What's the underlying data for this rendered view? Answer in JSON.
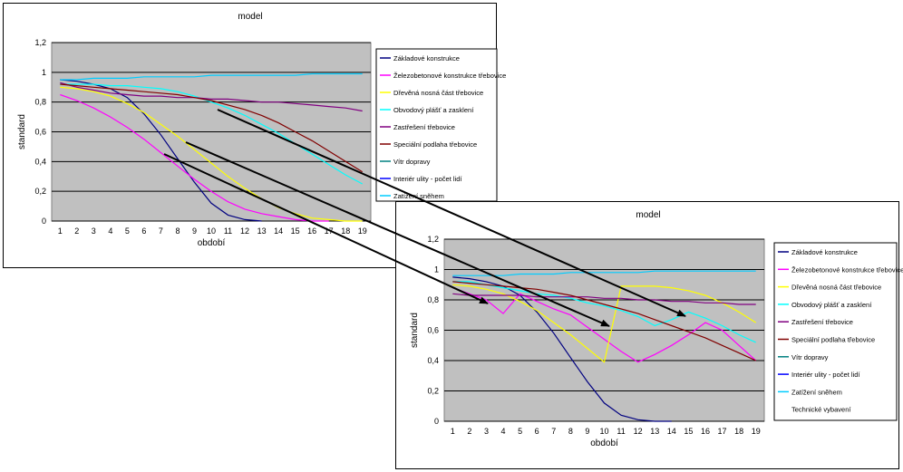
{
  "colors": {
    "plot_bg": "#c0c0c0",
    "grid": "#000000",
    "arrow": "#000000"
  },
  "chart_data": [
    {
      "type": "line",
      "title": "model",
      "xlabel": "období",
      "ylabel": "standard",
      "ylim": [
        0,
        1.2
      ],
      "yticks": [
        "0",
        "0,2",
        "0,4",
        "0,6",
        "0,8",
        "1",
        "1,2"
      ],
      "ytick_values": [
        0,
        0.2,
        0.4,
        0.6,
        0.8,
        1.0,
        1.2
      ],
      "x": [
        1,
        2,
        3,
        4,
        5,
        6,
        7,
        8,
        9,
        10,
        11,
        12,
        13,
        14,
        15,
        16,
        17,
        18,
        19
      ],
      "grid": true,
      "legend_position": "right",
      "series": [
        {
          "name": "Základové konstrukce",
          "color": "#000080",
          "values": [
            0.95,
            0.94,
            0.92,
            0.89,
            0.83,
            0.72,
            0.58,
            0.42,
            0.26,
            0.12,
            0.04,
            0.01,
            0.0,
            null,
            null,
            null,
            null,
            null,
            null
          ]
        },
        {
          "name": "Železobetonové konstrukce třebovice",
          "color": "#ff00ff",
          "values": [
            0.85,
            0.81,
            0.76,
            0.7,
            0.63,
            0.55,
            0.46,
            0.37,
            0.28,
            0.2,
            0.13,
            0.08,
            0.05,
            0.03,
            0.01,
            0.0,
            0.0,
            null,
            null
          ]
        },
        {
          "name": "Dřevěná nosná část třebovice",
          "color": "#ffff00",
          "values": [
            0.9,
            0.89,
            0.87,
            0.84,
            0.79,
            0.73,
            0.65,
            0.57,
            0.48,
            0.39,
            0.3,
            0.22,
            0.15,
            0.09,
            0.05,
            0.02,
            0.01,
            0.0,
            0.0
          ]
        },
        {
          "name": "Obvodový plášť a zasklení",
          "color": "#00ffff",
          "values": [
            0.92,
            0.92,
            0.92,
            0.91,
            0.91,
            0.9,
            0.89,
            0.87,
            0.84,
            0.8,
            0.76,
            0.71,
            0.65,
            0.59,
            0.52,
            0.45,
            0.38,
            0.31,
            0.25
          ]
        },
        {
          "name": "Zastřešení třebovice",
          "color": "#800080",
          "values": [
            0.93,
            0.9,
            0.88,
            0.86,
            0.85,
            0.84,
            0.84,
            0.83,
            0.83,
            0.82,
            0.82,
            0.81,
            0.8,
            0.8,
            0.79,
            0.78,
            0.77,
            0.76,
            0.74
          ]
        },
        {
          "name": "Speciální podlaha třebovice",
          "color": "#800000",
          "values": [
            0.92,
            0.91,
            0.9,
            0.89,
            0.88,
            0.87,
            0.86,
            0.85,
            0.83,
            0.81,
            0.78,
            0.75,
            0.71,
            0.66,
            0.6,
            0.54,
            0.47,
            0.4,
            0.33
          ]
        },
        {
          "name": "Vítr dopravy",
          "color": "#008080",
          "values": [
            null,
            null,
            null,
            null,
            null,
            null,
            null,
            null,
            null,
            null,
            null,
            null,
            null,
            null,
            null,
            null,
            null,
            null,
            null
          ]
        },
        {
          "name": "Interiér ulity - počet lidí",
          "color": "#0000ff",
          "values": [
            null,
            null,
            null,
            null,
            null,
            null,
            null,
            null,
            null,
            null,
            null,
            null,
            null,
            null,
            null,
            null,
            null,
            null,
            null
          ]
        },
        {
          "name": "Zatížení sněhem",
          "color": "#00ccff",
          "values": [
            0.95,
            0.95,
            0.96,
            0.96,
            0.96,
            0.97,
            0.97,
            0.97,
            0.97,
            0.98,
            0.98,
            0.98,
            0.98,
            0.98,
            0.98,
            0.99,
            0.99,
            0.99,
            0.99
          ]
        }
      ]
    },
    {
      "type": "line",
      "title": "model",
      "xlabel": "období",
      "ylabel": "standard",
      "ylim": [
        0,
        1.2
      ],
      "yticks": [
        "0",
        "0,2",
        "0,4",
        "0,6",
        "0,8",
        "1",
        "1,2"
      ],
      "ytick_values": [
        0,
        0.2,
        0.4,
        0.6,
        0.8,
        1.0,
        1.2
      ],
      "x": [
        1,
        2,
        3,
        4,
        5,
        6,
        7,
        8,
        9,
        10,
        11,
        12,
        13,
        14,
        15,
        16,
        17,
        18,
        19
      ],
      "grid": true,
      "legend_position": "right",
      "series": [
        {
          "name": "Základové konstrukce",
          "color": "#000080",
          "values": [
            0.95,
            0.94,
            0.92,
            0.89,
            0.83,
            0.72,
            0.58,
            0.42,
            0.26,
            0.12,
            0.04,
            0.01,
            0.0,
            0.0,
            null,
            null,
            null,
            null,
            null
          ]
        },
        {
          "name": "Železobetonové konstrukce třebovice",
          "color": "#ff00ff",
          "values": [
            0.88,
            0.84,
            0.8,
            0.71,
            0.84,
            0.79,
            0.74,
            0.7,
            0.62,
            0.54,
            0.46,
            0.39,
            0.44,
            0.5,
            0.57,
            0.65,
            0.6,
            0.5,
            0.4
          ]
        },
        {
          "name": "Dřevěná nosná část třebovice",
          "color": "#ffff00",
          "values": [
            0.9,
            0.89,
            0.87,
            0.84,
            0.79,
            0.73,
            0.65,
            0.57,
            0.48,
            0.39,
            0.89,
            0.89,
            0.89,
            0.88,
            0.86,
            0.83,
            0.78,
            0.72,
            0.65
          ]
        },
        {
          "name": "Obvodový plášť a zasklení",
          "color": "#00ffff",
          "values": [
            0.92,
            0.92,
            0.9,
            0.88,
            0.86,
            0.84,
            0.83,
            0.81,
            0.78,
            0.76,
            0.73,
            0.69,
            0.63,
            0.67,
            0.72,
            0.68,
            0.63,
            0.57,
            0.52
          ]
        },
        {
          "name": "Zastřešení třebovice",
          "color": "#800080",
          "values": [
            0.84,
            0.83,
            0.83,
            0.83,
            0.83,
            0.82,
            0.82,
            0.82,
            0.82,
            0.81,
            0.81,
            0.8,
            0.8,
            0.79,
            0.79,
            0.78,
            0.78,
            0.77,
            0.77
          ]
        },
        {
          "name": "Speciální podlaha třebovice",
          "color": "#800000",
          "values": [
            0.92,
            0.91,
            0.9,
            0.89,
            0.88,
            0.87,
            0.85,
            0.83,
            0.8,
            0.77,
            0.74,
            0.71,
            0.67,
            0.63,
            0.59,
            0.55,
            0.5,
            0.45,
            0.4
          ]
        },
        {
          "name": "Vítr dopravy",
          "color": "#008080",
          "values": [
            null,
            null,
            null,
            null,
            null,
            null,
            null,
            null,
            null,
            null,
            null,
            null,
            null,
            null,
            null,
            null,
            null,
            null,
            null
          ]
        },
        {
          "name": "Interiér ulity - počet lidí",
          "color": "#0000ff",
          "values": [
            null,
            null,
            null,
            null,
            null,
            null,
            null,
            null,
            null,
            null,
            null,
            null,
            null,
            null,
            null,
            null,
            null,
            null,
            null
          ]
        },
        {
          "name": "Zatížení sněhem",
          "color": "#00ccff",
          "values": [
            0.96,
            0.96,
            0.96,
            0.96,
            0.97,
            0.97,
            0.97,
            0.98,
            0.98,
            0.98,
            0.98,
            0.98,
            0.99,
            0.99,
            0.99,
            0.99,
            0.99,
            0.99,
            0.99
          ]
        },
        {
          "name": "Technické vybavení",
          "color": "#ffffff",
          "values": [
            null,
            null,
            null,
            null,
            null,
            null,
            null,
            null,
            null,
            null,
            null,
            null,
            null,
            null,
            null,
            null,
            null,
            null,
            null
          ]
        }
      ]
    }
  ]
}
